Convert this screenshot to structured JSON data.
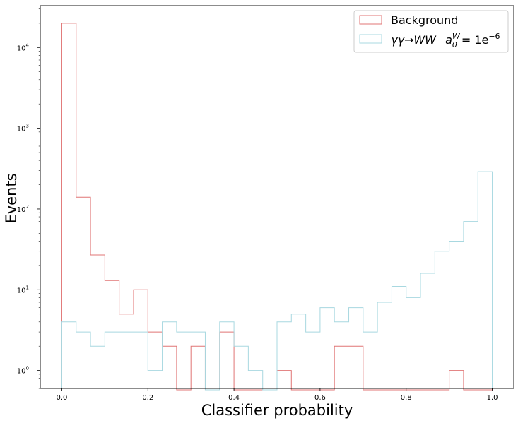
{
  "chart_data": {
    "type": "histogram",
    "title": "",
    "xlabel": "Classifier probability",
    "ylabel": "Events",
    "xlim": [
      -0.05,
      1.05
    ],
    "ylim": [
      0.6,
      33000
    ],
    "yscale": "log",
    "grid": false,
    "legend_position": "top-right",
    "bin_edges": [
      0.0,
      0.0333,
      0.0667,
      0.1,
      0.1333,
      0.1667,
      0.2,
      0.2333,
      0.2667,
      0.3,
      0.3333,
      0.3667,
      0.4,
      0.4333,
      0.4667,
      0.5,
      0.5333,
      0.5667,
      0.6,
      0.6333,
      0.6667,
      0.7,
      0.7333,
      0.7667,
      0.8,
      0.8333,
      0.8667,
      0.9,
      0.9333,
      0.9667,
      1.0
    ],
    "x_ticks": [
      {
        "value": 0.0,
        "label": "0.0"
      },
      {
        "value": 0.2,
        "label": "0.2"
      },
      {
        "value": 0.4,
        "label": "0.4"
      },
      {
        "value": 0.6,
        "label": "0.6"
      },
      {
        "value": 0.8,
        "label": "0.8"
      },
      {
        "value": 1.0,
        "label": "1.0"
      }
    ],
    "y_ticks": [
      {
        "value": 1,
        "base": "10",
        "exp": "0"
      },
      {
        "value": 10,
        "base": "10",
        "exp": "1"
      },
      {
        "value": 100,
        "base": "10",
        "exp": "2"
      },
      {
        "value": 1000,
        "base": "10",
        "exp": "3"
      },
      {
        "value": 10000,
        "base": "10",
        "exp": "4"
      }
    ],
    "series": [
      {
        "name": "Background",
        "color": "#e07575",
        "values": [
          20000,
          140,
          27,
          13,
          5,
          10,
          3,
          2,
          0,
          2,
          0,
          3,
          0,
          0,
          0,
          1,
          0,
          0,
          0,
          2,
          2,
          0,
          0,
          0,
          0,
          0,
          0,
          1,
          0,
          0
        ]
      },
      {
        "name": "γγ→WW   a0W = 1e−6",
        "color": "#a8d8e0",
        "values": [
          4,
          3,
          2,
          3,
          3,
          3,
          1,
          4,
          3,
          3,
          0,
          4,
          2,
          1,
          0,
          4,
          5,
          3,
          6,
          4,
          6,
          3,
          7,
          11,
          8,
          16,
          30,
          40,
          70,
          290
        ]
      }
    ],
    "legend": [
      {
        "series": 0,
        "label": "Background"
      },
      {
        "series": 1,
        "label": "γγ→WW   a0W = 1e−6"
      }
    ]
  }
}
